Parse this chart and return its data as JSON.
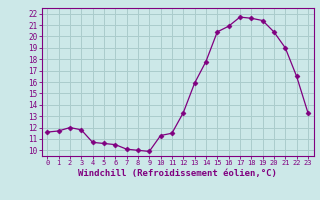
{
  "x": [
    0,
    1,
    2,
    3,
    4,
    5,
    6,
    7,
    8,
    9,
    10,
    11,
    12,
    13,
    14,
    15,
    16,
    17,
    18,
    19,
    20,
    21,
    22,
    23
  ],
  "y": [
    11.6,
    11.7,
    12.0,
    11.8,
    10.7,
    10.6,
    10.5,
    10.1,
    10.0,
    9.9,
    11.3,
    11.5,
    13.3,
    15.9,
    17.8,
    20.4,
    20.9,
    21.7,
    21.6,
    21.4,
    20.4,
    19.0,
    16.5,
    13.3
  ],
  "line_color": "#800080",
  "marker": "D",
  "marker_size": 2.5,
  "bg_color": "#cce8e8",
  "grid_color": "#aacccc",
  "tick_color": "#800080",
  "xlabel": "Windchill (Refroidissement éolien,°C)",
  "xlabel_fontsize": 6.5,
  "ylabel_ticks": [
    10,
    11,
    12,
    13,
    14,
    15,
    16,
    17,
    18,
    19,
    20,
    21,
    22
  ],
  "xlim": [
    -0.5,
    23.5
  ],
  "ylim": [
    9.5,
    22.5
  ]
}
